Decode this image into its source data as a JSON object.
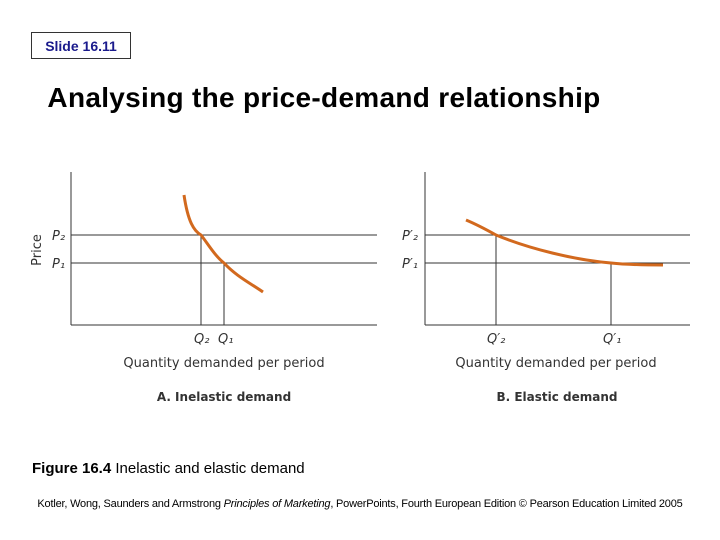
{
  "slide": {
    "badge": "Slide 16.11",
    "title": "Analysing the price-demand relationship"
  },
  "figure": {
    "y_axis_label": "Price",
    "panel_a": {
      "caption": "A.  Inelastic demand",
      "xlabel": "Quantity demanded per period",
      "price_labels": [
        "P₂",
        "P₁"
      ],
      "quantity_labels": [
        "Q₂",
        "Q₁"
      ]
    },
    "panel_b": {
      "caption": "B.  Elastic demand",
      "xlabel": "Quantity demanded per period",
      "price_labels": [
        "P′₂",
        "P′₁"
      ],
      "quantity_labels": [
        "Q′₂",
        "Q′₁"
      ]
    },
    "curve_color": "#d2691e"
  },
  "caption": {
    "figure_no": "Figure 16.4",
    "text": " Inelastic and elastic demand"
  },
  "footer": {
    "prefix": "Kotler, Wong, Saunders and Armstrong ",
    "book": "Principles of Marketing",
    "suffix": ", PowerPoints, Fourth European Edition © Pearson Education Limited 2005"
  }
}
